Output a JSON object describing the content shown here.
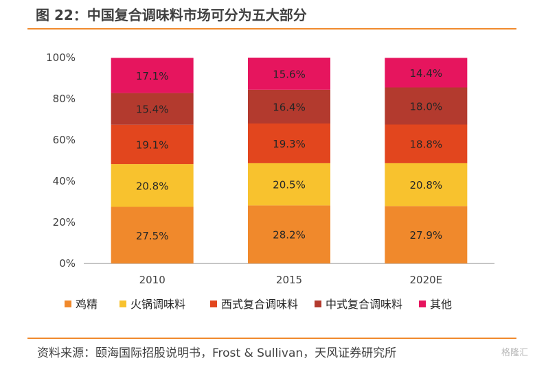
{
  "title": "图 22：中国复合调味料市场可分为五大部分",
  "source": "资料来源：颐海国际招股说明书，Frost & Sullivan，天风证券研究所",
  "watermark": "格隆汇",
  "chart_data": {
    "type": "bar",
    "stacked": true,
    "percent_stacked": true,
    "categories": [
      "2010",
      "2015",
      "2020E"
    ],
    "yticks": [
      "0%",
      "20%",
      "40%",
      "60%",
      "80%",
      "100%"
    ],
    "ylim": [
      0,
      100
    ],
    "grid": false,
    "legend_position": "bottom",
    "series": [
      {
        "name": "鸡精",
        "color": "#F0892C",
        "values": [
          27.5,
          28.2,
          27.9
        ],
        "labels": [
          "27.5%",
          "28.2%",
          "27.9%"
        ]
      },
      {
        "name": "火锅调味料",
        "color": "#F8C22E",
        "values": [
          20.8,
          20.5,
          20.8
        ],
        "labels": [
          "20.8%",
          "20.5%",
          "20.8%"
        ]
      },
      {
        "name": "西式复合调味料",
        "color": "#E2461E",
        "values": [
          19.1,
          19.3,
          18.8
        ],
        "labels": [
          "19.1%",
          "19.3%",
          "18.8%"
        ]
      },
      {
        "name": "中式复合调味料",
        "color": "#B33A2E",
        "values": [
          15.4,
          16.4,
          18.0
        ],
        "labels": [
          "15.4%",
          "16.4%",
          "18.0%"
        ]
      },
      {
        "name": "其他",
        "color": "#E6155E",
        "values": [
          17.1,
          15.6,
          14.4
        ],
        "labels": [
          "17.1%",
          "15.6%",
          "14.4%"
        ]
      }
    ]
  }
}
